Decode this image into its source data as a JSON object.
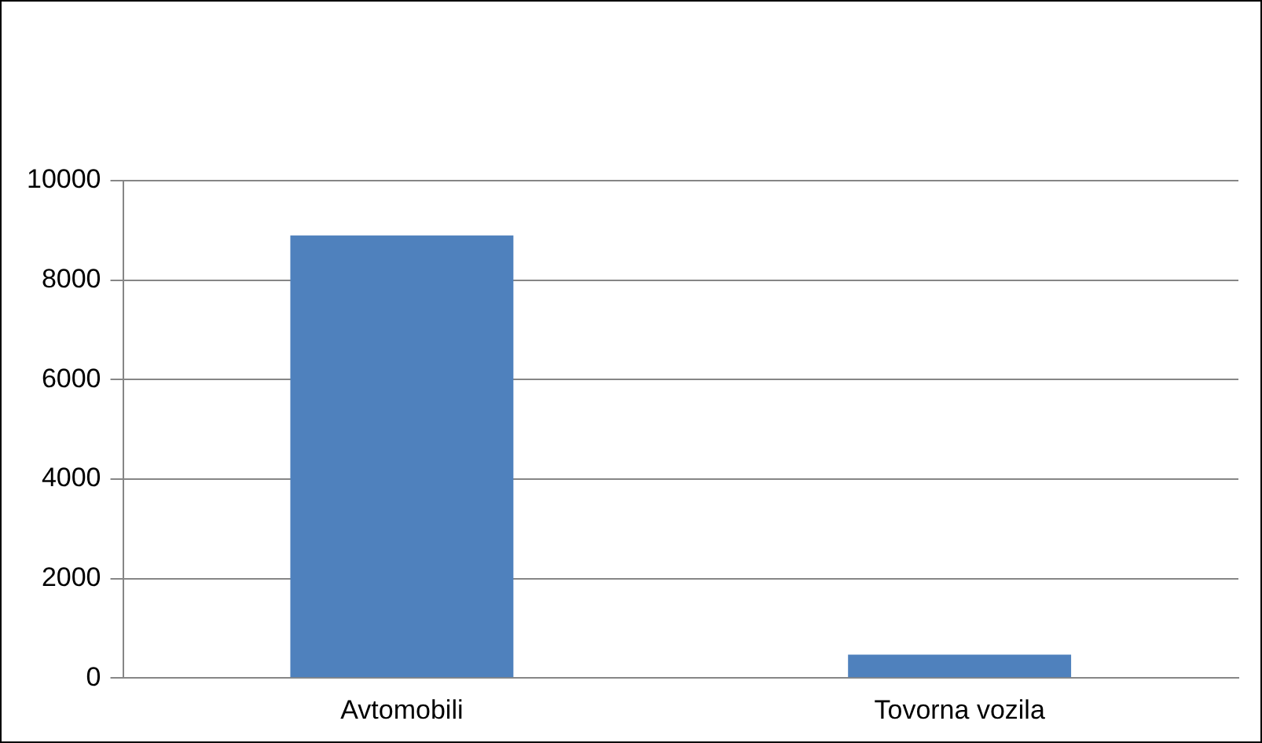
{
  "chart_data": {
    "type": "bar",
    "categories": [
      "Avtomobili",
      "Tovorna vozila"
    ],
    "values": [
      8900,
      470
    ],
    "color": "#4f81bd",
    "ylim": [
      0,
      10000
    ],
    "yticks": [
      0,
      2000,
      4000,
      6000,
      8000,
      10000
    ],
    "grid": "y",
    "legend": false
  }
}
